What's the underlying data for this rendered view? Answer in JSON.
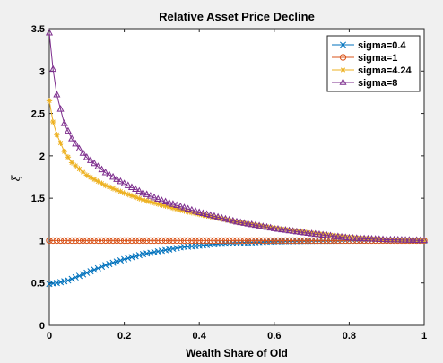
{
  "chart_data": {
    "type": "line",
    "title": "Relative Asset Price Decline",
    "xlabel": "Wealth Share of Old",
    "ylabel": "ξ",
    "xlim": [
      0,
      1
    ],
    "ylim": [
      0,
      3.5
    ],
    "xticks": [
      "0",
      "0.2",
      "0.4",
      "0.6",
      "0.8",
      "1"
    ],
    "yticks": [
      "0",
      "0.5",
      "1",
      "1.5",
      "2",
      "2.5",
      "3",
      "3.5"
    ],
    "legend_position": "top-right",
    "grid": false,
    "series": [
      {
        "name": "sigma=0.4",
        "color": "#0072BD",
        "marker": "x",
        "x": [
          0.0,
          0.02,
          0.05,
          0.1,
          0.15,
          0.2,
          0.25,
          0.3,
          0.35,
          0.4,
          0.45,
          0.5,
          0.55,
          0.6,
          0.7,
          0.8,
          0.9,
          1.0
        ],
        "y": [
          0.49,
          0.5,
          0.53,
          0.62,
          0.71,
          0.78,
          0.84,
          0.88,
          0.92,
          0.94,
          0.96,
          0.97,
          0.98,
          0.99,
          0.995,
          0.998,
          1.0,
          1.0
        ]
      },
      {
        "name": "sigma=1",
        "color": "#D95319",
        "marker": "o",
        "x": [
          0.0,
          0.1,
          0.2,
          0.3,
          0.4,
          0.5,
          0.6,
          0.7,
          0.8,
          0.9,
          1.0
        ],
        "y": [
          1.0,
          1.0,
          1.0,
          1.0,
          1.0,
          1.0,
          1.0,
          1.0,
          1.0,
          1.0,
          1.0
        ]
      },
      {
        "name": "sigma=4.24",
        "color": "#EDB120",
        "marker": "*",
        "x": [
          0.0,
          0.01,
          0.02,
          0.04,
          0.06,
          0.1,
          0.15,
          0.2,
          0.25,
          0.3,
          0.35,
          0.4,
          0.5,
          0.6,
          0.7,
          0.8,
          0.9,
          1.0
        ],
        "y": [
          2.65,
          2.4,
          2.25,
          2.05,
          1.92,
          1.77,
          1.65,
          1.56,
          1.48,
          1.42,
          1.36,
          1.31,
          1.22,
          1.15,
          1.09,
          1.04,
          1.01,
          1.0
        ]
      },
      {
        "name": "sigma=8",
        "color": "#7E2F8E",
        "marker": "^",
        "x": [
          0.0,
          0.01,
          0.02,
          0.04,
          0.06,
          0.08,
          0.1,
          0.15,
          0.2,
          0.25,
          0.3,
          0.35,
          0.4,
          0.5,
          0.6,
          0.7,
          0.8,
          0.9,
          1.0
        ],
        "y": [
          3.45,
          3.02,
          2.72,
          2.38,
          2.2,
          2.08,
          1.98,
          1.8,
          1.67,
          1.56,
          1.47,
          1.4,
          1.33,
          1.22,
          1.14,
          1.08,
          1.03,
          1.01,
          1.0
        ]
      }
    ]
  }
}
